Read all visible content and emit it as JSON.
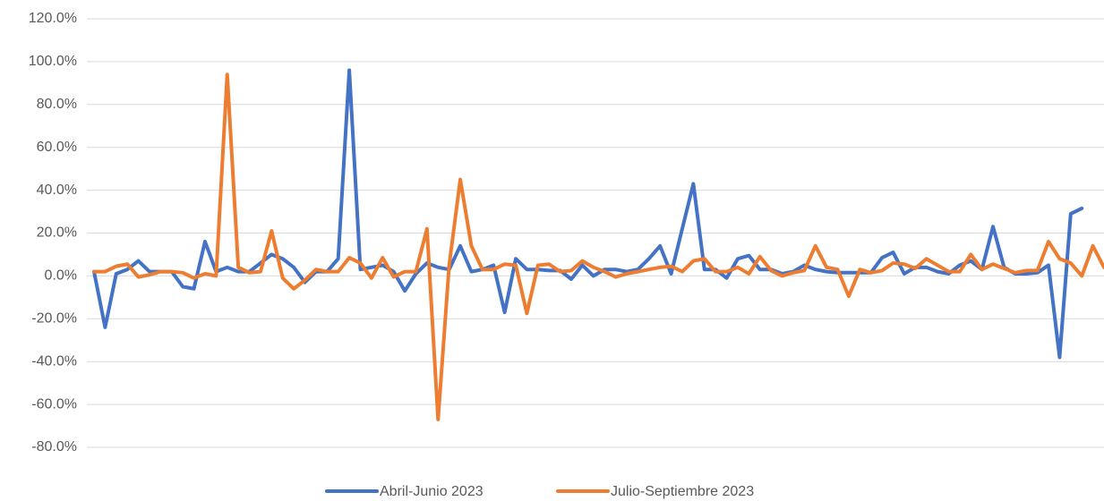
{
  "chart_data": {
    "type": "line",
    "categories": [
      null,
      null,
      null,
      null,
      null,
      null,
      null,
      null,
      null,
      null,
      null,
      null,
      null,
      null,
      null,
      null,
      null,
      null,
      null,
      null,
      null,
      null,
      null,
      null,
      null,
      null,
      null,
      null,
      null,
      null,
      null,
      null,
      null,
      null,
      null,
      null,
      null,
      null,
      null,
      null,
      null,
      null,
      null,
      null,
      null,
      null,
      null,
      null,
      null,
      null,
      null,
      null,
      null,
      null,
      null,
      null,
      null,
      null,
      null,
      null,
      null,
      null,
      null,
      null,
      null,
      null,
      null,
      null,
      null,
      null,
      null,
      null,
      null,
      null,
      null,
      null,
      null,
      null,
      null,
      null,
      null,
      null,
      null,
      null,
      null,
      null,
      null,
      null,
      null,
      null,
      null,
      null
    ],
    "series": [
      {
        "name": "Abril-Junio 2023",
        "color": "#4472c4",
        "values": [
          2,
          -24,
          1,
          3,
          7,
          2,
          2,
          2,
          -5,
          -6,
          16,
          2,
          4,
          2,
          2,
          6,
          10,
          8,
          4,
          -3,
          2,
          2,
          8,
          96,
          3,
          4,
          5,
          2,
          -7,
          1,
          6,
          4,
          3,
          14,
          2,
          3,
          5,
          -17,
          8,
          3,
          3,
          2.5,
          2.5,
          -1.5,
          5,
          0,
          3,
          3,
          2,
          3,
          8,
          14,
          1,
          22,
          43,
          3,
          3,
          -1,
          8,
          9.5,
          3,
          3,
          1,
          2,
          5,
          3,
          2,
          1.5,
          1.5,
          1.5,
          1.5,
          8.5,
          11,
          1,
          4,
          4,
          2,
          1,
          5,
          7,
          3,
          23,
          4,
          1,
          1,
          1.5,
          5,
          -38,
          29,
          31.5,
          null,
          null
        ]
      },
      {
        "name": "Julio-Septiembre 2023",
        "color": "#ed7d31",
        "values": [
          2,
          2,
          4.5,
          5.5,
          -0.5,
          0.5,
          2,
          2,
          1.5,
          -1,
          1,
          0,
          94,
          4,
          1.5,
          2,
          21,
          -1,
          -6,
          -2,
          3,
          2,
          2,
          8.5,
          6,
          -1,
          8.5,
          -0.5,
          2,
          2,
          22,
          -67,
          5,
          45,
          14,
          3,
          3,
          5.5,
          5,
          -17.5,
          5,
          5.5,
          2,
          2.5,
          7,
          4,
          2,
          -0.5,
          1,
          2,
          3,
          4,
          4.5,
          2,
          7,
          8,
          2,
          2,
          4,
          1,
          9,
          2.5,
          0,
          1.5,
          2.5,
          14,
          4,
          3,
          -9.5,
          3,
          1.5,
          2.5,
          6,
          5.5,
          3.5,
          8,
          5,
          2,
          2,
          10,
          3,
          5.5,
          3.5,
          1.5,
          2.5,
          2.5,
          16,
          8,
          6,
          0,
          14,
          4
        ]
      }
    ],
    "ylim": [
      -90,
      125
    ],
    "yticks": [
      {
        "value": -80,
        "label": "-80.0%"
      },
      {
        "value": -60,
        "label": "-60.0%"
      },
      {
        "value": -40,
        "label": "-40.0%"
      },
      {
        "value": -20,
        "label": "-20.0%"
      },
      {
        "value": 0,
        "label": "0.0%"
      },
      {
        "value": 20,
        "label": "20.0%"
      },
      {
        "value": 40,
        "label": "40.0%"
      },
      {
        "value": 60,
        "label": "60.0%"
      },
      {
        "value": 80,
        "label": "80.0%"
      },
      {
        "value": 100,
        "label": "100.0%"
      },
      {
        "value": 120,
        "label": "120.0%"
      }
    ],
    "grid": true,
    "legend": "bottom"
  }
}
